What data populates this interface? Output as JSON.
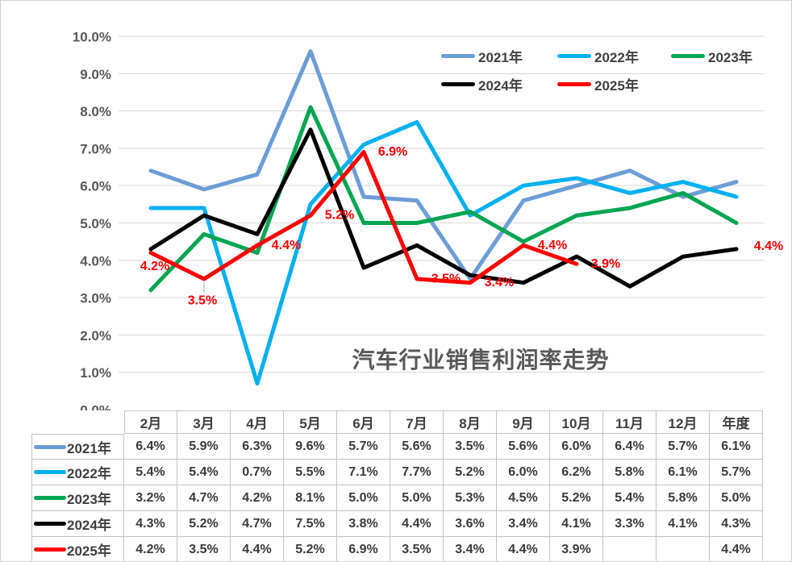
{
  "window": {
    "background": "#FFFFFF",
    "border_color": "#CFCFCF"
  },
  "chart_data": {
    "type": "line",
    "title": "汽车行业销售利润率走势",
    "categories": [
      "2月",
      "3月",
      "4月",
      "5月",
      "6月",
      "7月",
      "8月",
      "9月",
      "10月",
      "11月",
      "12月",
      "年度"
    ],
    "series": [
      {
        "name": "2021年",
        "color": "#6C9DD6",
        "values": [
          6.4,
          5.9,
          6.3,
          9.6,
          5.7,
          5.6,
          3.5,
          5.6,
          6.0,
          6.4,
          5.7,
          6.1
        ]
      },
      {
        "name": "2022年",
        "color": "#00B0F0",
        "values": [
          5.4,
          5.4,
          0.7,
          5.5,
          7.1,
          7.7,
          5.2,
          6.0,
          6.2,
          5.8,
          6.1,
          5.7
        ]
      },
      {
        "name": "2023年",
        "color": "#00A550",
        "values": [
          3.2,
          4.7,
          4.2,
          8.1,
          5.0,
          5.0,
          5.3,
          4.5,
          5.2,
          5.4,
          5.8,
          5.0
        ]
      },
      {
        "name": "2024年",
        "color": "#000000",
        "values": [
          4.3,
          5.2,
          4.7,
          7.5,
          3.8,
          4.4,
          3.6,
          3.4,
          4.1,
          3.3,
          4.1,
          4.3
        ]
      },
      {
        "name": "2025年",
        "color": "#FF0000",
        "values": [
          4.2,
          3.5,
          4.4,
          5.2,
          6.9,
          3.5,
          3.4,
          4.4,
          3.9,
          null,
          null,
          4.4
        ],
        "show_labels": true,
        "label_color": "#FF0000"
      }
    ],
    "y_axis": {
      "min": 0,
      "max": 10,
      "step": 1,
      "tick_labels": [
        "0.0%",
        "1.0%",
        "2.0%",
        "3.0%",
        "4.0%",
        "5.0%",
        "6.0%",
        "7.0%",
        "8.0%",
        "9.0%",
        "10.0%"
      ]
    },
    "grid": true,
    "gridline_color": "#D9D9D9",
    "legend_position": "inside-top-right",
    "data_label_format": "0.0%",
    "x_axis_labels_shown_in": "data-table"
  },
  "data_table": {
    "attached_below_chart": true,
    "legend_keys_in_first_column": true,
    "value_format": "0.0%"
  }
}
